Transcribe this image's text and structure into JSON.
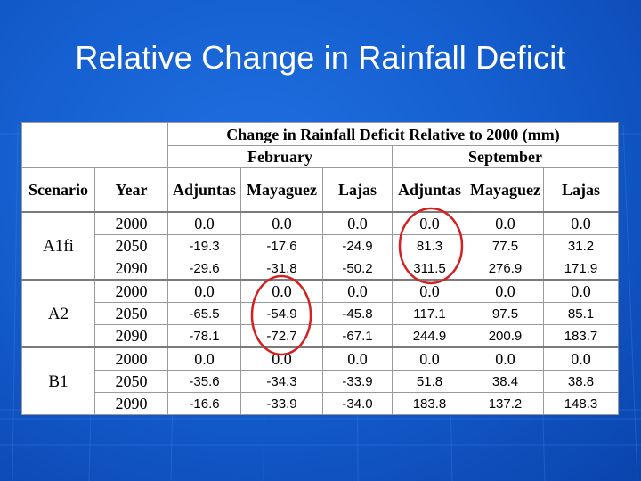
{
  "slide": {
    "title": "Relative Change in Rainfall Deficit"
  },
  "table": {
    "caption": "Change in Rainfall Deficit Relative to 2000 (mm)",
    "months": [
      "February",
      "September"
    ],
    "scenario_header": "Scenario",
    "year_header": "Year",
    "stations": [
      "Adjuntas",
      "Mayaguez",
      "Lajas",
      "Adjuntas",
      "Mayaguez",
      "Lajas"
    ],
    "groups": [
      {
        "scenario": "A1fi",
        "rows": [
          {
            "year": "2000",
            "values": [
              "0.0",
              "0.0",
              "0.0",
              "0.0",
              "0.0",
              "0.0"
            ]
          },
          {
            "year": "2050",
            "values": [
              "-19.3",
              "-17.6",
              "-24.9",
              "81.3",
              "77.5",
              "31.2"
            ]
          },
          {
            "year": "2090",
            "values": [
              "-29.6",
              "-31.8",
              "-50.2",
              "311.5",
              "276.9",
              "171.9"
            ]
          }
        ]
      },
      {
        "scenario": "A2",
        "rows": [
          {
            "year": "2000",
            "values": [
              "0.0",
              "0.0",
              "0.0",
              "0.0",
              "0.0",
              "0.0"
            ]
          },
          {
            "year": "2050",
            "values": [
              "-65.5",
              "-54.9",
              "-45.8",
              "117.1",
              "97.5",
              "85.1"
            ]
          },
          {
            "year": "2090",
            "values": [
              "-78.1",
              "-72.7",
              "-67.1",
              "244.9",
              "200.9",
              "183.7"
            ]
          }
        ]
      },
      {
        "scenario": "B1",
        "rows": [
          {
            "year": "2000",
            "values": [
              "0.0",
              "0.0",
              "0.0",
              "0.0",
              "0.0",
              "0.0"
            ]
          },
          {
            "year": "2050",
            "values": [
              "-35.6",
              "-34.3",
              "-33.9",
              "51.8",
              "38.4",
              "38.8"
            ]
          },
          {
            "year": "2090",
            "values": [
              "-16.6",
              "-33.9",
              "-34.0",
              "183.8",
              "137.2",
              "148.3"
            ]
          }
        ]
      }
    ]
  },
  "colors": {
    "circle": "#d42020",
    "background": "#155fd0"
  }
}
